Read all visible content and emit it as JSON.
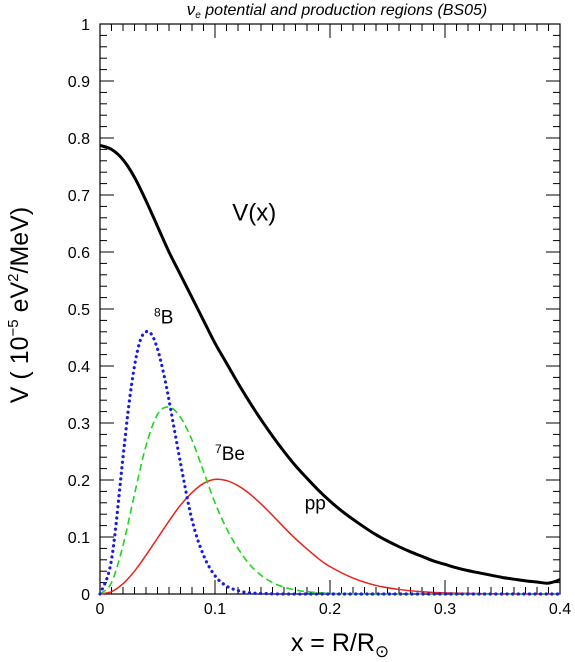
{
  "chart_data": {
    "type": "line",
    "title": "ν_e potential and production regions (BS05)",
    "title_parts": {
      "nu": "ν",
      "sub": "e",
      "rest": " potential and production regions (BS05)"
    },
    "xlabel": "x = R/R⊙",
    "xlabel_parts": {
      "main": "x = R/R",
      "sub": "⊙"
    },
    "ylabel": "V (10⁻⁵ eV²/MeV)",
    "ylabel_parts": {
      "a": "V ( 10",
      "sup1": "−5",
      "b": " eV",
      "sup2": "2",
      "c": "/MeV)"
    },
    "xlim": [
      0,
      0.4
    ],
    "ylim": [
      0,
      1
    ],
    "xticks": [
      0,
      0.1,
      0.2,
      0.3,
      0.4
    ],
    "xtick_labels": [
      "0",
      "0.1",
      "0.2",
      "0.3",
      "0.4"
    ],
    "yticks": [
      0,
      0.1,
      0.2,
      0.3,
      0.4,
      0.5,
      0.6,
      0.7,
      0.8,
      0.9,
      1
    ],
    "ytick_labels": [
      "0",
      "0.1",
      "0.2",
      "0.3",
      "0.4",
      "0.5",
      "0.6",
      "0.7",
      "0.8",
      "0.9",
      "1"
    ],
    "grid": false,
    "series": [
      {
        "name": "V(x)",
        "color": "#000000",
        "style": "solid",
        "x": [
          0.0,
          0.01,
          0.02,
          0.03,
          0.04,
          0.05,
          0.06,
          0.07,
          0.08,
          0.09,
          0.1,
          0.11,
          0.12,
          0.13,
          0.14,
          0.15,
          0.16,
          0.17,
          0.18,
          0.19,
          0.2,
          0.21,
          0.22,
          0.23,
          0.24,
          0.25,
          0.26,
          0.27,
          0.28,
          0.29,
          0.3,
          0.31,
          0.32,
          0.33,
          0.34,
          0.35,
          0.36,
          0.37,
          0.38,
          0.39,
          0.4
        ],
        "y": [
          0.787,
          0.78,
          0.762,
          0.731,
          0.69,
          0.645,
          0.6,
          0.56,
          0.52,
          0.48,
          0.44,
          0.405,
          0.37,
          0.337,
          0.306,
          0.277,
          0.25,
          0.225,
          0.203,
          0.182,
          0.163,
          0.146,
          0.131,
          0.117,
          0.104,
          0.093,
          0.083,
          0.074,
          0.066,
          0.058,
          0.052,
          0.046,
          0.041,
          0.037,
          0.033,
          0.029,
          0.026,
          0.023,
          0.021,
          0.019,
          0.025
        ]
      },
      {
        "name": "pp",
        "color": "#e8231c",
        "style": "solid",
        "x": [
          0.0,
          0.01,
          0.02,
          0.03,
          0.04,
          0.05,
          0.06,
          0.07,
          0.08,
          0.09,
          0.1,
          0.11,
          0.12,
          0.13,
          0.14,
          0.15,
          0.16,
          0.17,
          0.18,
          0.19,
          0.2,
          0.22,
          0.24,
          0.26,
          0.28,
          0.3,
          0.32,
          0.34,
          0.36,
          0.38,
          0.4
        ],
        "y": [
          0.0,
          0.004,
          0.018,
          0.04,
          0.068,
          0.098,
          0.128,
          0.156,
          0.178,
          0.194,
          0.201,
          0.199,
          0.19,
          0.176,
          0.158,
          0.138,
          0.117,
          0.097,
          0.079,
          0.062,
          0.048,
          0.028,
          0.015,
          0.008,
          0.004,
          0.002,
          0.001,
          0.0005,
          0.0002,
          0.0001,
          0.0
        ]
      },
      {
        "name": "⁷Be",
        "color": "#1ed41e",
        "style": "dashed",
        "x": [
          0.0,
          0.01,
          0.02,
          0.03,
          0.04,
          0.05,
          0.06,
          0.07,
          0.08,
          0.09,
          0.1,
          0.11,
          0.12,
          0.13,
          0.14,
          0.15,
          0.16,
          0.17,
          0.18,
          0.2,
          0.22,
          0.24,
          0.26,
          0.3,
          0.34,
          0.4
        ],
        "y": [
          0.0,
          0.02,
          0.085,
          0.175,
          0.26,
          0.315,
          0.328,
          0.31,
          0.27,
          0.215,
          0.16,
          0.115,
          0.08,
          0.052,
          0.033,
          0.02,
          0.012,
          0.007,
          0.004,
          0.001,
          0.0004,
          0.0001,
          0.0,
          0.0,
          0.0,
          0.0
        ]
      },
      {
        "name": "⁸B",
        "color": "#1a1ae6",
        "style": "dotted",
        "x": [
          0.0,
          0.01,
          0.02,
          0.025,
          0.03,
          0.035,
          0.04,
          0.045,
          0.05,
          0.055,
          0.06,
          0.07,
          0.08,
          0.09,
          0.1,
          0.11,
          0.12,
          0.13,
          0.14,
          0.16,
          0.2,
          0.3,
          0.4
        ],
        "y": [
          0.0,
          0.06,
          0.24,
          0.33,
          0.4,
          0.445,
          0.46,
          0.455,
          0.43,
          0.39,
          0.34,
          0.23,
          0.13,
          0.068,
          0.032,
          0.014,
          0.006,
          0.002,
          0.001,
          0.0,
          0.0,
          0.0,
          0.0
        ]
      }
    ],
    "annotations": [
      {
        "id": "vx",
        "text": "V(x)",
        "x": 0.115,
        "y": 0.655
      },
      {
        "id": "b8",
        "text": "B",
        "sup": "8",
        "x": 0.047,
        "y": 0.475
      },
      {
        "id": "be7",
        "text": "Be",
        "sup": "7",
        "x": 0.1,
        "y": 0.235
      },
      {
        "id": "pp",
        "text": "pp",
        "x": 0.178,
        "y": 0.148
      }
    ]
  }
}
